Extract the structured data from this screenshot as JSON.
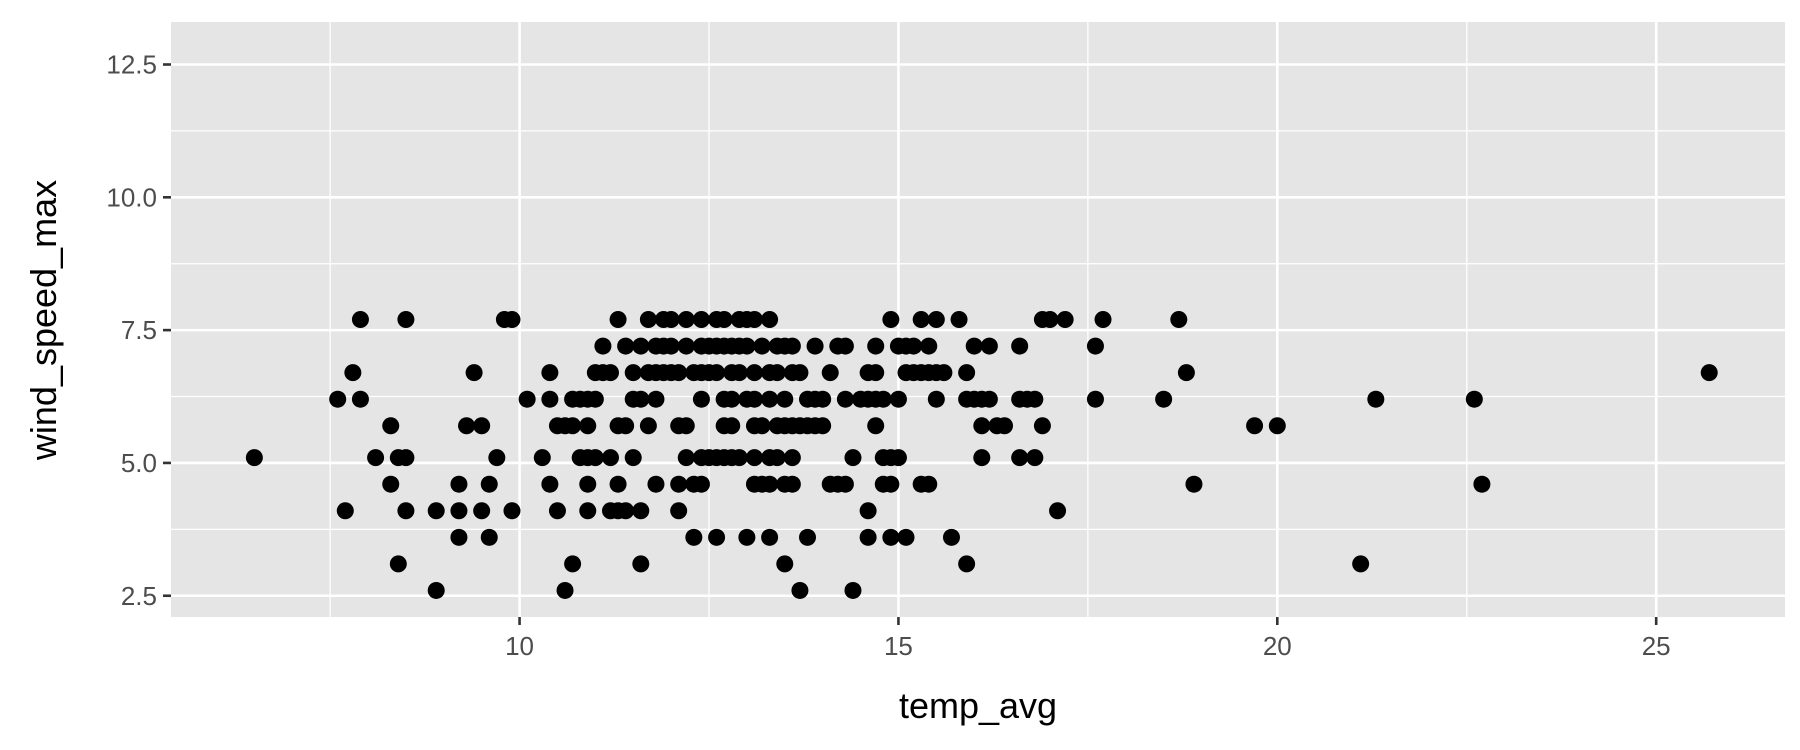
{
  "chart_data": {
    "type": "scatter",
    "title": "",
    "xlabel": "temp_avg",
    "ylabel": "wind_speed_max",
    "xlim": [
      5.4,
      26.7
    ],
    "ylim": [
      2.1,
      13.3
    ],
    "x_ticks": [
      10,
      15,
      20,
      25
    ],
    "y_ticks": [
      2.5,
      5.0,
      7.5,
      10.0,
      12.5
    ],
    "x_tick_labels": [
      "10",
      "15",
      "20",
      "25"
    ],
    "y_tick_labels": [
      "2.5",
      "5.0",
      "7.5",
      "10.0",
      "12.5"
    ],
    "grid": true,
    "legend": "none",
    "colors": {
      "panel": "#e5e5e5",
      "grid": "#ffffff",
      "point": "#000000",
      "tick": "#333333",
      "tick_text": "#4d4d4d"
    },
    "points": [
      [
        6.5,
        5.1
      ],
      [
        7.6,
        6.2
      ],
      [
        7.7,
        4.1
      ],
      [
        7.8,
        6.7
      ],
      [
        7.9,
        6.2
      ],
      [
        7.9,
        7.7
      ],
      [
        8.1,
        5.1
      ],
      [
        8.3,
        5.7
      ],
      [
        8.3,
        4.6
      ],
      [
        8.4,
        5.1
      ],
      [
        8.4,
        3.1
      ],
      [
        8.5,
        5.1
      ],
      [
        8.5,
        4.1
      ],
      [
        8.5,
        7.7
      ],
      [
        8.9,
        2.6
      ],
      [
        8.9,
        4.1
      ],
      [
        9.2,
        4.6
      ],
      [
        9.2,
        4.1
      ],
      [
        9.2,
        3.6
      ],
      [
        9.3,
        5.7
      ],
      [
        9.4,
        6.7
      ],
      [
        9.5,
        5.7
      ],
      [
        9.5,
        4.1
      ],
      [
        9.6,
        3.6
      ],
      [
        9.6,
        4.6
      ],
      [
        9.7,
        5.1
      ],
      [
        9.8,
        7.7
      ],
      [
        9.9,
        7.7
      ],
      [
        9.9,
        4.1
      ],
      [
        10.1,
        6.2
      ],
      [
        10.3,
        5.1
      ],
      [
        10.4,
        6.7
      ],
      [
        10.4,
        6.2
      ],
      [
        10.4,
        4.6
      ],
      [
        10.5,
        5.7
      ],
      [
        10.5,
        4.1
      ],
      [
        10.6,
        5.7
      ],
      [
        10.6,
        2.6
      ],
      [
        10.7,
        6.2
      ],
      [
        10.7,
        5.7
      ],
      [
        10.7,
        3.1
      ],
      [
        10.8,
        6.2
      ],
      [
        10.8,
        5.1
      ],
      [
        10.9,
        6.2
      ],
      [
        10.9,
        5.7
      ],
      [
        10.9,
        5.1
      ],
      [
        10.9,
        4.6
      ],
      [
        10.9,
        4.1
      ],
      [
        11.0,
        6.2
      ],
      [
        11.0,
        6.7
      ],
      [
        11.0,
        5.1
      ],
      [
        11.1,
        6.7
      ],
      [
        11.1,
        7.2
      ],
      [
        11.2,
        6.7
      ],
      [
        11.2,
        5.1
      ],
      [
        11.2,
        4.1
      ],
      [
        11.3,
        4.6
      ],
      [
        11.3,
        4.1
      ],
      [
        11.3,
        5.7
      ],
      [
        11.3,
        7.7
      ],
      [
        11.4,
        7.2
      ],
      [
        11.4,
        5.7
      ],
      [
        11.4,
        4.1
      ],
      [
        11.5,
        6.7
      ],
      [
        11.5,
        5.1
      ],
      [
        11.5,
        6.2
      ],
      [
        11.6,
        6.2
      ],
      [
        11.6,
        7.2
      ],
      [
        11.6,
        4.1
      ],
      [
        11.6,
        3.1
      ],
      [
        11.7,
        5.7
      ],
      [
        11.7,
        6.7
      ],
      [
        11.7,
        7.7
      ],
      [
        11.8,
        7.2
      ],
      [
        11.8,
        6.2
      ],
      [
        11.8,
        6.7
      ],
      [
        11.8,
        4.6
      ],
      [
        11.9,
        7.7
      ],
      [
        11.9,
        7.2
      ],
      [
        11.9,
        6.7
      ],
      [
        12.0,
        7.2
      ],
      [
        12.0,
        7.7
      ],
      [
        12.0,
        6.7
      ],
      [
        12.1,
        5.7
      ],
      [
        12.1,
        4.6
      ],
      [
        12.1,
        4.1
      ],
      [
        12.1,
        6.7
      ],
      [
        12.2,
        7.7
      ],
      [
        12.2,
        7.2
      ],
      [
        12.2,
        5.1
      ],
      [
        12.2,
        5.7
      ],
      [
        12.3,
        6.7
      ],
      [
        12.3,
        3.6
      ],
      [
        12.3,
        4.6
      ],
      [
        12.4,
        7.7
      ],
      [
        12.4,
        7.2
      ],
      [
        12.4,
        6.7
      ],
      [
        12.4,
        5.1
      ],
      [
        12.4,
        6.2
      ],
      [
        12.4,
        4.6
      ],
      [
        12.5,
        7.2
      ],
      [
        12.5,
        5.1
      ],
      [
        12.5,
        6.7
      ],
      [
        12.6,
        7.7
      ],
      [
        12.6,
        7.2
      ],
      [
        12.6,
        6.7
      ],
      [
        12.6,
        5.1
      ],
      [
        12.6,
        3.6
      ],
      [
        12.7,
        7.7
      ],
      [
        12.7,
        7.2
      ],
      [
        12.7,
        6.2
      ],
      [
        12.7,
        5.7
      ],
      [
        12.7,
        5.1
      ],
      [
        12.8,
        6.7
      ],
      [
        12.8,
        7.2
      ],
      [
        12.8,
        5.1
      ],
      [
        12.8,
        5.7
      ],
      [
        12.8,
        6.2
      ],
      [
        12.9,
        7.2
      ],
      [
        12.9,
        7.7
      ],
      [
        12.9,
        6.7
      ],
      [
        12.9,
        5.1
      ],
      [
        13.0,
        7.2
      ],
      [
        13.0,
        7.7
      ],
      [
        13.0,
        6.2
      ],
      [
        13.0,
        3.6
      ],
      [
        13.1,
        5.7
      ],
      [
        13.1,
        6.7
      ],
      [
        13.1,
        4.6
      ],
      [
        13.1,
        5.1
      ],
      [
        13.1,
        6.2
      ],
      [
        13.1,
        7.7
      ],
      [
        13.2,
        7.2
      ],
      [
        13.2,
        4.6
      ],
      [
        13.2,
        5.7
      ],
      [
        13.3,
        7.7
      ],
      [
        13.3,
        6.7
      ],
      [
        13.3,
        6.2
      ],
      [
        13.3,
        5.1
      ],
      [
        13.3,
        4.6
      ],
      [
        13.3,
        3.6
      ],
      [
        13.4,
        7.2
      ],
      [
        13.4,
        5.7
      ],
      [
        13.4,
        5.1
      ],
      [
        13.4,
        6.7
      ],
      [
        13.5,
        7.2
      ],
      [
        13.5,
        6.2
      ],
      [
        13.5,
        4.6
      ],
      [
        13.5,
        5.7
      ],
      [
        13.5,
        3.1
      ],
      [
        13.6,
        6.7
      ],
      [
        13.6,
        5.7
      ],
      [
        13.6,
        5.1
      ],
      [
        13.6,
        4.6
      ],
      [
        13.6,
        7.2
      ],
      [
        13.7,
        5.7
      ],
      [
        13.7,
        6.7
      ],
      [
        13.7,
        2.6
      ],
      [
        13.8,
        6.2
      ],
      [
        13.8,
        5.7
      ],
      [
        13.8,
        3.6
      ],
      [
        13.9,
        7.2
      ],
      [
        13.9,
        6.2
      ],
      [
        13.9,
        5.7
      ],
      [
        14.0,
        6.2
      ],
      [
        14.0,
        5.7
      ],
      [
        14.1,
        6.7
      ],
      [
        14.1,
        4.6
      ],
      [
        14.2,
        7.2
      ],
      [
        14.2,
        4.6
      ],
      [
        14.3,
        7.2
      ],
      [
        14.3,
        6.2
      ],
      [
        14.3,
        4.6
      ],
      [
        14.4,
        5.1
      ],
      [
        14.4,
        2.6
      ],
      [
        14.5,
        6.2
      ],
      [
        14.6,
        6.7
      ],
      [
        14.6,
        4.1
      ],
      [
        14.6,
        3.6
      ],
      [
        14.6,
        6.2
      ],
      [
        14.7,
        7.2
      ],
      [
        14.7,
        6.7
      ],
      [
        14.7,
        5.7
      ],
      [
        14.7,
        6.2
      ],
      [
        14.8,
        5.1
      ],
      [
        14.8,
        4.6
      ],
      [
        14.8,
        6.2
      ],
      [
        14.9,
        7.7
      ],
      [
        14.9,
        4.6
      ],
      [
        14.9,
        3.6
      ],
      [
        14.9,
        5.1
      ],
      [
        15.0,
        7.2
      ],
      [
        15.0,
        5.1
      ],
      [
        15.0,
        6.2
      ],
      [
        15.1,
        7.2
      ],
      [
        15.1,
        3.6
      ],
      [
        15.1,
        6.7
      ],
      [
        15.2,
        7.2
      ],
      [
        15.2,
        6.7
      ],
      [
        15.3,
        6.7
      ],
      [
        15.3,
        4.6
      ],
      [
        15.3,
        7.7
      ],
      [
        15.4,
        4.6
      ],
      [
        15.4,
        6.7
      ],
      [
        15.4,
        7.2
      ],
      [
        15.5,
        6.2
      ],
      [
        15.5,
        6.7
      ],
      [
        15.5,
        7.7
      ],
      [
        15.6,
        6.7
      ],
      [
        15.7,
        3.6
      ],
      [
        15.8,
        7.7
      ],
      [
        15.9,
        6.7
      ],
      [
        15.9,
        6.2
      ],
      [
        15.9,
        3.1
      ],
      [
        16.0,
        7.2
      ],
      [
        16.0,
        6.2
      ],
      [
        16.1,
        5.1
      ],
      [
        16.1,
        5.7
      ],
      [
        16.1,
        6.2
      ],
      [
        16.2,
        7.2
      ],
      [
        16.2,
        6.2
      ],
      [
        16.3,
        5.7
      ],
      [
        16.4,
        5.7
      ],
      [
        16.6,
        7.2
      ],
      [
        16.6,
        6.2
      ],
      [
        16.6,
        5.1
      ],
      [
        16.7,
        6.2
      ],
      [
        16.8,
        6.2
      ],
      [
        16.8,
        5.1
      ],
      [
        16.9,
        7.7
      ],
      [
        16.9,
        5.7
      ],
      [
        17.0,
        7.7
      ],
      [
        17.1,
        4.1
      ],
      [
        17.2,
        7.7
      ],
      [
        17.6,
        7.2
      ],
      [
        17.6,
        6.2
      ],
      [
        17.7,
        7.7
      ],
      [
        18.5,
        6.2
      ],
      [
        18.7,
        7.7
      ],
      [
        18.8,
        6.7
      ],
      [
        18.9,
        4.6
      ],
      [
        19.7,
        5.7
      ],
      [
        20.0,
        5.7
      ],
      [
        21.1,
        3.1
      ],
      [
        21.3,
        6.2
      ],
      [
        22.6,
        6.2
      ],
      [
        22.7,
        4.6
      ],
      [
        25.7,
        6.7
      ]
    ]
  }
}
